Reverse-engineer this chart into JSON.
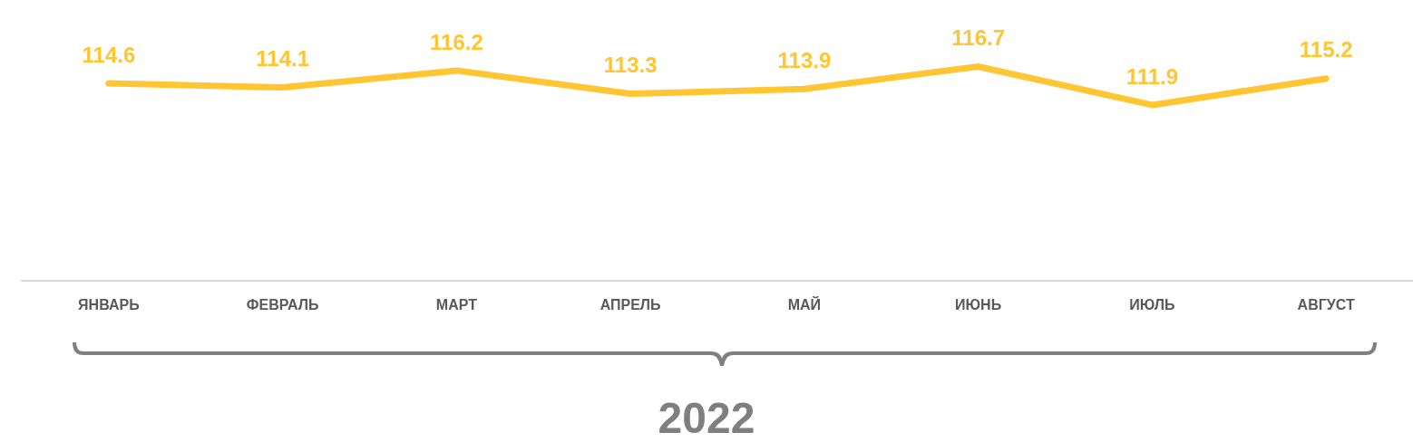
{
  "chart_data": {
    "type": "line",
    "xlabel": "2022",
    "categories": [
      "ЯНВАРЬ",
      "ФЕВРАЛЬ",
      "МАРТ",
      "АПРЕЛЬ",
      "МАЙ",
      "ИЮНЬ",
      "ИЮЛЬ",
      "АВГУСТ"
    ],
    "series": [
      {
        "color": "#ffc533",
        "values": [
          114.6,
          114.1,
          116.2,
          113.3,
          113.9,
          116.7,
          111.9,
          115.2
        ]
      }
    ],
    "tick_labels": "x",
    "data_labels": true,
    "grid": false,
    "legend": false,
    "marker": "none",
    "line_style": "solid"
  }
}
